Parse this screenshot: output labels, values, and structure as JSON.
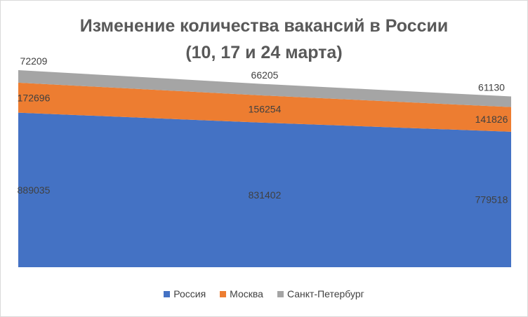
{
  "chart_data": {
    "type": "area",
    "stacked": true,
    "title": "Изменение количества вакансий в России",
    "subtitle": "(10, 17 и 24 марта)",
    "categories": [
      "",
      "",
      ""
    ],
    "series": [
      {
        "name": "Россия",
        "values": [
          889035,
          831402,
          779518
        ],
        "color": "#4472C4"
      },
      {
        "name": "Москва",
        "values": [
          172696,
          156254,
          141826
        ],
        "color": "#ED7D31"
      },
      {
        "name": "Санкт-Петербург",
        "values": [
          72209,
          66205,
          61130
        ],
        "color": "#A5A5A5"
      }
    ],
    "ylim": [
      0,
      1150000
    ],
    "grid": false,
    "legend_position": "bottom"
  }
}
